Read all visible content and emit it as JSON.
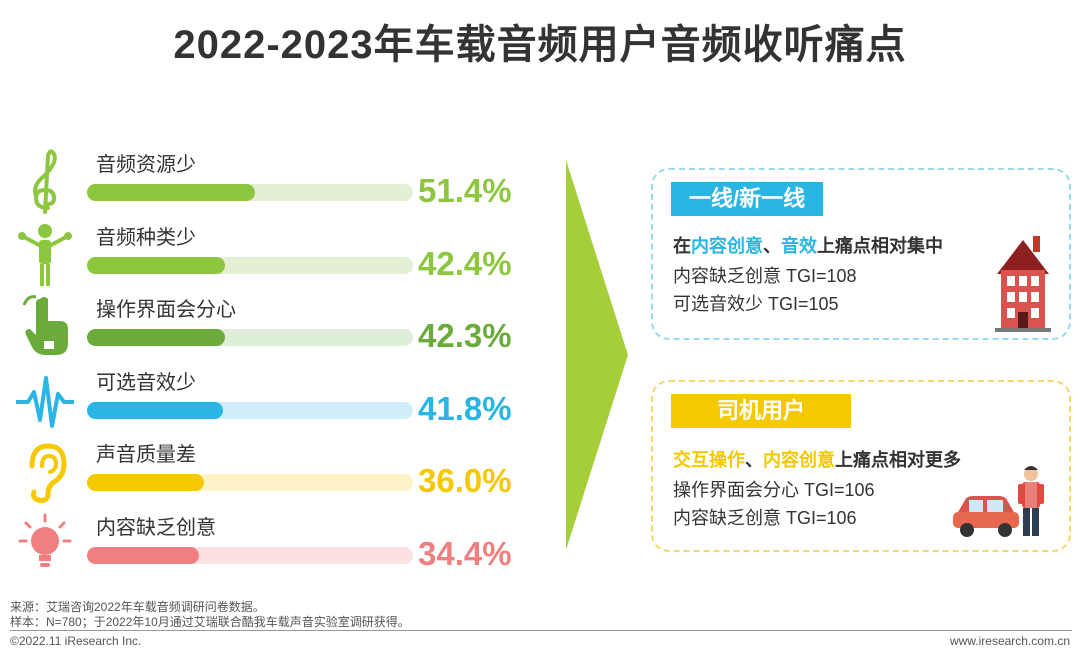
{
  "page": {
    "title": "2022-2023年车载音频用户音频收听痛点"
  },
  "chart_data": {
    "type": "bar",
    "categories": [
      "音频资源少",
      "音频种类少",
      "操作界面会分心",
      "可选音效少",
      "声音质量差",
      "内容缺乏创意"
    ],
    "values": [
      51.4,
      42.4,
      42.3,
      41.8,
      36.0,
      34.4
    ],
    "value_labels": [
      "51.4%",
      "42.4%",
      "42.3%",
      "41.8%",
      "36.0%",
      "34.4%"
    ],
    "bar_colors": [
      "#8dc63f",
      "#8dc63f",
      "#6aab3c",
      "#29b6e5",
      "#f5c800",
      "#f08080"
    ],
    "track_colors": [
      "#e4f0d4",
      "#e4f0d4",
      "#dfeed8",
      "#d0eef9",
      "#fdf3c8",
      "#fbe1e1"
    ],
    "label_colors": [
      "#8dc63f",
      "#8dc63f",
      "#6aab3c",
      "#29b6e5",
      "#f5c800",
      "#f08080"
    ],
    "icons": [
      "treble-clef-icon",
      "conductor-icon",
      "hand-pointer-icon",
      "sound-wave-icon",
      "ear-icon",
      "lightbulb-icon"
    ],
    "ylim": [
      0,
      100
    ]
  },
  "groups": [
    {
      "badge": "一线/新一线",
      "headline_parts": [
        {
          "text": "在",
          "color": "#333333"
        },
        {
          "text": "内容创意",
          "color": "#29b6e5"
        },
        {
          "text": "、",
          "color": "#333333"
        },
        {
          "text": "音效",
          "color": "#29b6e5"
        },
        {
          "text": "上痛点相对集中",
          "color": "#333333"
        }
      ],
      "lines": [
        "内容缺乏创意  TGI=108",
        "可选音效少  TGI=105"
      ],
      "accent": "#29b6e5",
      "picture": "house-icon"
    },
    {
      "badge": "司机用户",
      "headline_parts": [
        {
          "text": "交互操作",
          "color": "#f5c800"
        },
        {
          "text": "、",
          "color": "#333333"
        },
        {
          "text": "内容创意",
          "color": "#f5c800"
        },
        {
          "text": "上痛点相对更多",
          "color": "#333333"
        }
      ],
      "lines": [
        "操作界面会分心  TGI=106",
        "内容缺乏创意 TGI=106"
      ],
      "accent": "#f5c800",
      "picture": "driver-car-icon"
    }
  ],
  "notes": {
    "source": "来源：艾瑞咨询2022年车载音频调研问卷数据。",
    "sample": "样本：N=780；于2022年10月通过艾瑞联合酷我车载声音实验室调研获得。"
  },
  "footer": {
    "copyright": "©2022.11 iResearch Inc.",
    "url": "www.iresearch.com.cn"
  },
  "colors": {
    "arrow": "#a6ce39",
    "title": "#333333"
  }
}
